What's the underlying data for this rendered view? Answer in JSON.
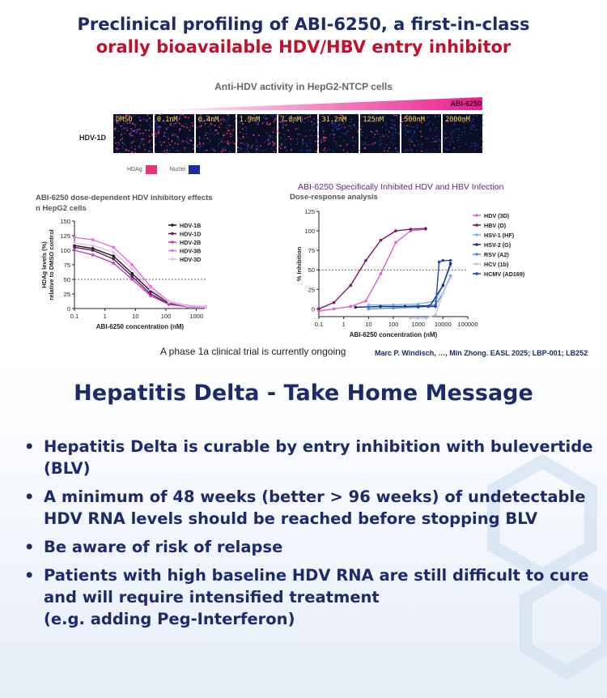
{
  "header": {
    "title_line1": "Preclinical profiling of ABI-6250, a first-in-class",
    "title_line2": "orally bioavailable HDV/HBV entry inhibitor",
    "panel_title": "Anti-HDV activity in HepG2-NTCP cells",
    "compound_label": "ABI-6250",
    "row_label": "HDV-1D",
    "concentrations": [
      "DMSO",
      "0.1nM",
      "0.4nM",
      "1.9nM",
      "7.8nM",
      "31.2nM",
      "125nM",
      "500nM",
      "2000nM"
    ],
    "stain_legend": [
      {
        "label": "HDAg",
        "color": "#e8357a"
      },
      {
        "label": "Nuclei",
        "color": "#1f2b9c"
      }
    ]
  },
  "left_heading": {
    "line1": "ABI-6250 dose-dependent HDV inhibitory effects",
    "line2": "n HepG2 cells"
  },
  "right_heading": {
    "line1": "ABI-6250 Specifically Inhibited HDV and HBV Infection",
    "line2": "Dose-response analysis"
  },
  "chart_data": [
    {
      "type": "line",
      "xlabel": "ABI-6250 concentration (nM)",
      "ylabel": "HDAg levels (%) relative to DMSO control",
      "ylabel_lines": [
        "HDAg levels (%)",
        "relative to DMSO control"
      ],
      "xscale": "log",
      "xlim": [
        0.1,
        2000
      ],
      "ylim": [
        0,
        150
      ],
      "xticks": [
        0.1,
        1,
        10,
        100,
        1000
      ],
      "xtick_labels": [
        "0.1",
        "1",
        "10",
        "100",
        "1000"
      ],
      "yticks": [
        0,
        25,
        50,
        75,
        100,
        125,
        150
      ],
      "reference_line": 50,
      "legend_position": "top-right",
      "x": [
        0.1,
        0.4,
        1.9,
        7.8,
        31.2,
        125,
        500,
        2000
      ],
      "series": [
        {
          "name": "HDV-1B",
          "color": "#1a1a1a",
          "values": [
            108,
            103,
            90,
            60,
            30,
            10,
            4,
            2
          ]
        },
        {
          "name": "HDV-1D",
          "color": "#5c1552",
          "values": [
            105,
            100,
            85,
            55,
            25,
            8,
            3,
            2
          ]
        },
        {
          "name": "HDV-2B",
          "color": "#c53bbd",
          "values": [
            100,
            92,
            78,
            50,
            22,
            7,
            3,
            2
          ]
        },
        {
          "name": "HDV-3B",
          "color": "#e070d8",
          "values": [
            122,
            118,
            105,
            75,
            38,
            12,
            5,
            3
          ]
        },
        {
          "name": "HDV-3D",
          "color": "#f2b8ee",
          "values": [
            112,
            108,
            97,
            68,
            33,
            11,
            4,
            2
          ]
        }
      ]
    },
    {
      "type": "line",
      "xlabel": "ABI-6250 concentration (nM)",
      "ylabel": "% Inhibition",
      "xscale": "log",
      "xlim": [
        0.1,
        100000
      ],
      "ylim": [
        -10,
        125
      ],
      "xticks": [
        0.1,
        1,
        10,
        100,
        1000,
        10000,
        100000
      ],
      "xtick_labels": [
        "0.1",
        "1",
        "10",
        "100",
        "1000",
        "10000",
        "100000"
      ],
      "yticks": [
        0,
        25,
        50,
        75,
        100,
        125
      ],
      "reference_line": 50,
      "legend_position": "top-right",
      "series": [
        {
          "name": "HDV (3D)",
          "color": "#e25fd0",
          "x": [
            0.1,
            0.4,
            1.9,
            7.8,
            31.2,
            125,
            500,
            2000
          ],
          "values": [
            -3,
            0,
            3,
            10,
            45,
            85,
            100,
            102
          ]
        },
        {
          "name": "HBV (D)",
          "color": "#7a1a66",
          "x": [
            0.1,
            0.4,
            1.9,
            7.8,
            31.2,
            125,
            500,
            2000
          ],
          "values": [
            0,
            8,
            30,
            62,
            88,
            100,
            102,
            103
          ]
        },
        {
          "name": "HSV-1 (HF)",
          "color": "#7bb6e6",
          "x": [
            10,
            100,
            1000,
            5000,
            10000,
            20000
          ],
          "values": [
            5,
            5,
            6,
            10,
            30,
            55
          ]
        },
        {
          "name": "HSV-2 (G)",
          "color": "#1a2a7a",
          "x": [
            3,
            30,
            300,
            3000,
            10000,
            20000
          ],
          "values": [
            2,
            3,
            3,
            4,
            30,
            58
          ]
        },
        {
          "name": "RSV (A2)",
          "color": "#4a8fe0",
          "x": [
            10,
            100,
            1000,
            5000,
            10000,
            20000
          ],
          "values": [
            0,
            1,
            2,
            5,
            20,
            42
          ]
        },
        {
          "name": "HCV (1b)",
          "color": "#b8c8ec",
          "x": [
            500,
            1000,
            2000,
            5000,
            10000,
            20000
          ],
          "values": [
            -12,
            -12,
            -12,
            -8,
            20,
            40
          ]
        },
        {
          "name": "HCMV (AD169)",
          "color": "#2c3fbf",
          "x": [
            1000,
            2500,
            5000,
            7000,
            10000,
            20000
          ],
          "values": [
            3,
            3,
            3,
            60,
            62,
            62
          ]
        }
      ]
    }
  ],
  "footer": {
    "trial_note": "A phase 1a clinical trial is currently ongoing",
    "citation": "Marc P. Windisch, …, Min Zhong. EASL 2025; LBP-001; LB252"
  },
  "take_home": {
    "title": "Hepatitis Delta - Take Home Message",
    "bullets": [
      "Hepatitis Delta is curable by entry inhibition with bulevertide\n(BLV)",
      "A minimum of 48 weeks (better > 96 weeks) of undetectable\nHDV RNA levels should be reached before stopping BLV",
      "Be aware of risk of relapse",
      "Patients with high baseline HDV RNA are still difficult to cure\nand will require intensified treatment\n(e.g. adding Peg-Interferon)"
    ]
  }
}
